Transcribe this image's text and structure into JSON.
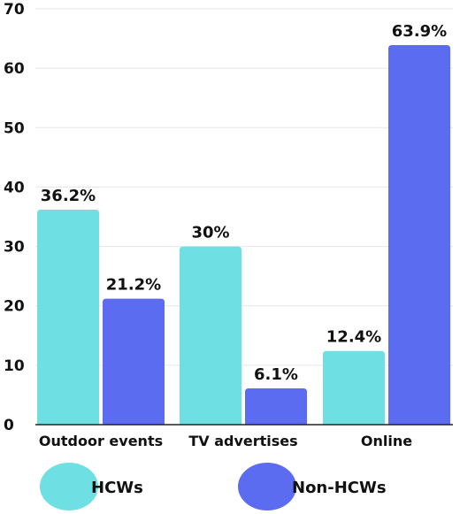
{
  "chart_data": {
    "type": "bar",
    "categories": [
      "Outdoor events",
      "TV advertises",
      "Online"
    ],
    "series": [
      {
        "name": "HCWs",
        "values": [
          36.2,
          30,
          12.4
        ],
        "labels": [
          "36.2%",
          "30%",
          "12.4%"
        ],
        "color": "#6ee0e3"
      },
      {
        "name": "Non-HCWs",
        "values": [
          21.2,
          6.1,
          63.9
        ],
        "labels": [
          "21.2%",
          "6.1%",
          "63.9%"
        ],
        "color": "#5b6cf0"
      }
    ],
    "yticks": [
      0,
      10,
      20,
      30,
      40,
      50,
      60,
      70
    ],
    "ylim": [
      0,
      70
    ],
    "grid": true,
    "legend": "bottom",
    "title": "",
    "xlabel": "",
    "ylabel": ""
  }
}
